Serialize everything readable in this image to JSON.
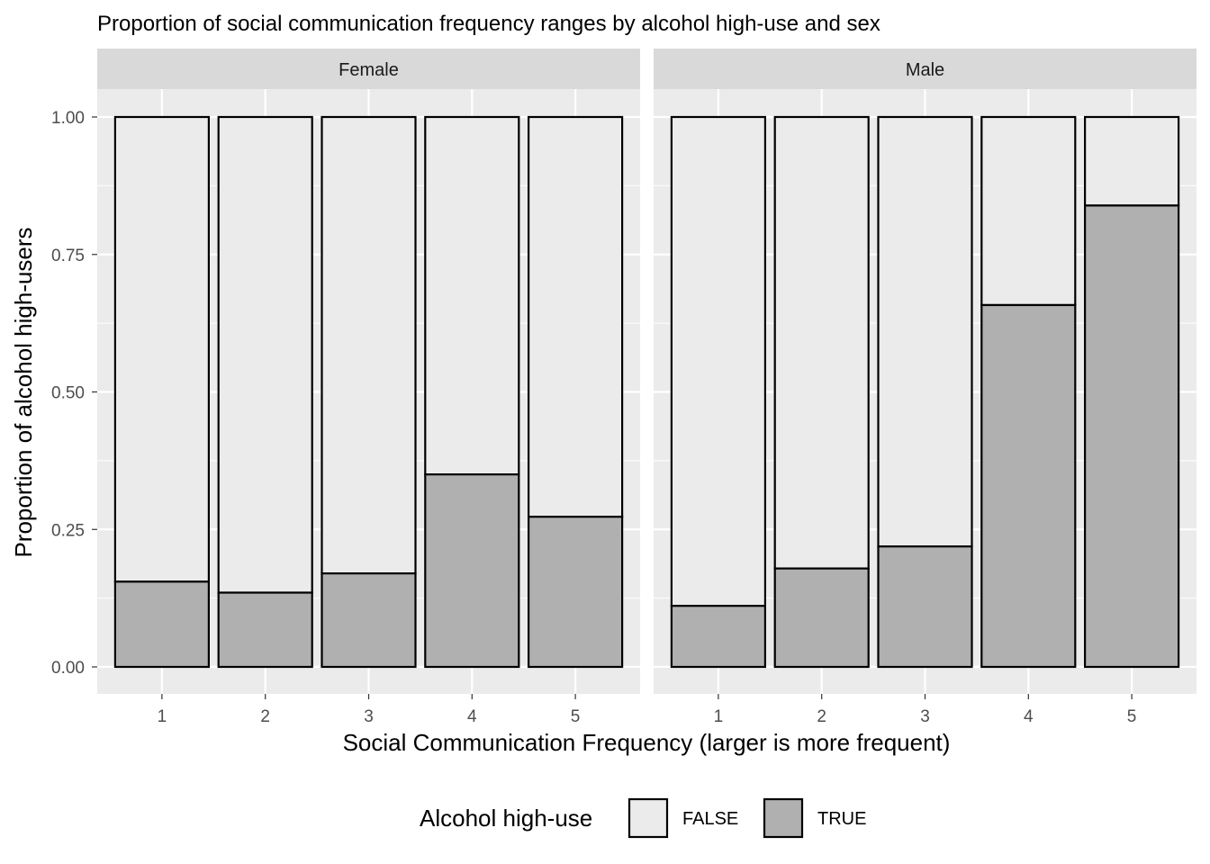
{
  "chart_data": {
    "type": "bar",
    "stacked": true,
    "title": "Proportion of social communication frequency ranges  by alcohol high-use and sex",
    "xlabel": "Social Communication Frequency (larger is more frequent)",
    "ylabel": "Proportion of alcohol high-users",
    "ylim": [
      0,
      1
    ],
    "yticks": [
      "0.00",
      "0.25",
      "0.50",
      "0.75",
      "1.00"
    ],
    "categories": [
      "1",
      "2",
      "3",
      "4",
      "5"
    ],
    "legend": {
      "title": "Alcohol high-use",
      "position": "bottom",
      "entries": [
        {
          "label": "FALSE",
          "color": "#ebebeb"
        },
        {
          "label": "TRUE",
          "color": "#b0b0b0"
        }
      ]
    },
    "facets": [
      {
        "name": "Female",
        "series": [
          {
            "name": "TRUE",
            "values": [
              0.155,
              0.135,
              0.17,
              0.35,
              0.273
            ]
          },
          {
            "name": "FALSE",
            "values": [
              0.845,
              0.865,
              0.83,
              0.65,
              0.727
            ]
          }
        ]
      },
      {
        "name": "Male",
        "series": [
          {
            "name": "TRUE",
            "values": [
              0.111,
              0.179,
              0.219,
              0.658,
              0.839
            ]
          },
          {
            "name": "FALSE",
            "values": [
              0.889,
              0.821,
              0.781,
              0.342,
              0.161
            ]
          }
        ]
      }
    ],
    "grid": true,
    "colors": {
      "panel_bg": "#ebebeb",
      "strip_bg": "#d9d9d9",
      "gridline": "#ffffff",
      "bar_outline": "#000000"
    }
  }
}
